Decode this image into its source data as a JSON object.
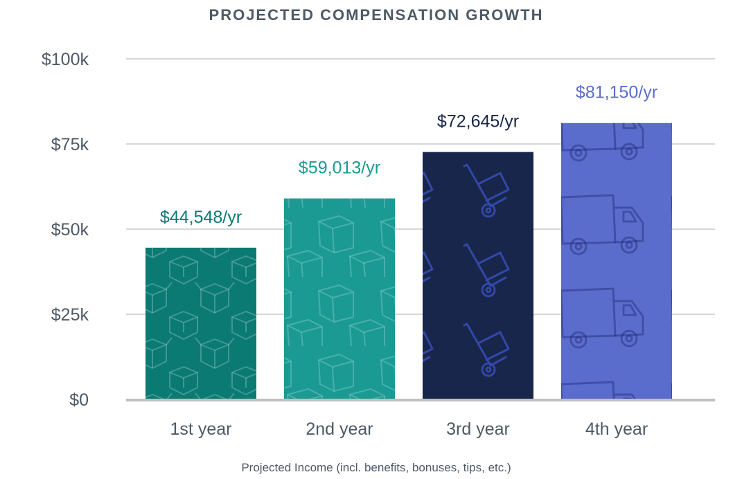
{
  "chart_data": {
    "type": "bar",
    "title": "PROJECTED COMPENSATION GROWTH",
    "xlabel": "Projected Income (incl. benefits, bonuses, tips, etc.)",
    "ylabel": "",
    "ylim": [
      0,
      100000
    ],
    "yticks": [
      0,
      25000,
      50000,
      75000,
      100000
    ],
    "ytick_labels": [
      "$0",
      "$25k",
      "$50k",
      "$75k",
      "$100k"
    ],
    "grid": true,
    "legend": "none",
    "categories": [
      "1st year",
      "2nd year",
      "3rd year",
      "4th year"
    ],
    "values": [
      44548,
      59013,
      72645,
      81150
    ],
    "value_labels": [
      "$44,548/yr",
      "$59,013/yr",
      "$72,645/yr",
      "$81,150/yr"
    ],
    "bar_colors": [
      "#0b7a73",
      "#1b9a94",
      "#17264a",
      "#5b6dcc"
    ],
    "label_colors": [
      "#0b7a73",
      "#1b9a94",
      "#17264a",
      "#5b6dcc"
    ],
    "bar_patterns": [
      "box-icon",
      "box-icon",
      "hand-truck-icon",
      "truck-icon"
    ]
  },
  "colors": {
    "title": "#4d5a66",
    "axis_text": "#4d5a66",
    "grid": "#c8c8c8",
    "baseline": "#c0c0c0"
  }
}
